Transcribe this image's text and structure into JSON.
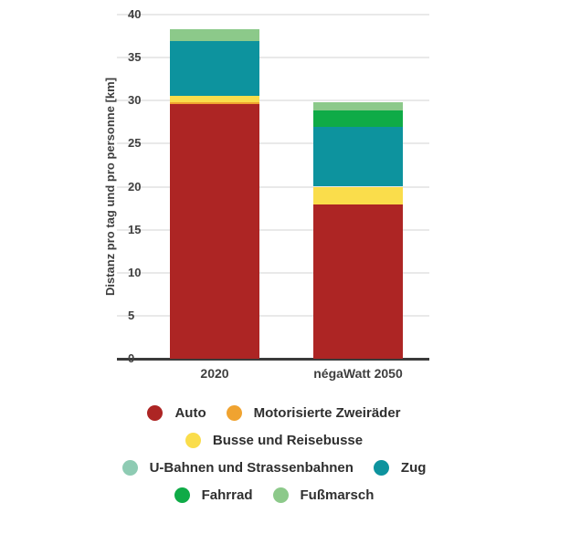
{
  "chart_data": {
    "type": "bar",
    "stacked": true,
    "title": "",
    "ylabel": "Distanz pro tag und pro personne [km]",
    "xlabel": "",
    "ylim": [
      0,
      40
    ],
    "yticks": [
      0,
      5,
      10,
      15,
      20,
      25,
      30,
      35,
      40
    ],
    "grid": true,
    "legend_position": "bottom",
    "categories": [
      "2020",
      "négaWatt 2050"
    ],
    "series": [
      {
        "name": "Auto",
        "color": "#ad2524",
        "values": [
          29.6,
          17.9
        ]
      },
      {
        "name": "Motorisierte Zweiräder",
        "color": "#f0a330",
        "values": [
          0.2,
          0
        ]
      },
      {
        "name": "Busse und Reisebusse",
        "color": "#fadd4b",
        "values": [
          0.8,
          2.1
        ]
      },
      {
        "name": "U-Bahnen und Strassenbahnen",
        "color": "#8ecbb3",
        "values": [
          0,
          0
        ]
      },
      {
        "name": "Zug",
        "color": "#0d939e",
        "values": [
          6.3,
          7.0
        ]
      },
      {
        "name": "Fahrrad",
        "color": "#0fab47",
        "values": [
          0,
          1.9
        ]
      },
      {
        "name": "Fußmarsch",
        "color": "#8cc98a",
        "values": [
          1.4,
          0.9
        ]
      }
    ],
    "totals": [
      38.3,
      29.8
    ],
    "legend_rows": [
      [
        0,
        1
      ],
      [
        2
      ],
      [
        3,
        4
      ],
      [
        5,
        6
      ]
    ]
  },
  "colors": {
    "background": "#ffffff",
    "gridline": "#e9e9e9",
    "axis_line": "#3b3b3b",
    "text": "#3f3f3f"
  }
}
